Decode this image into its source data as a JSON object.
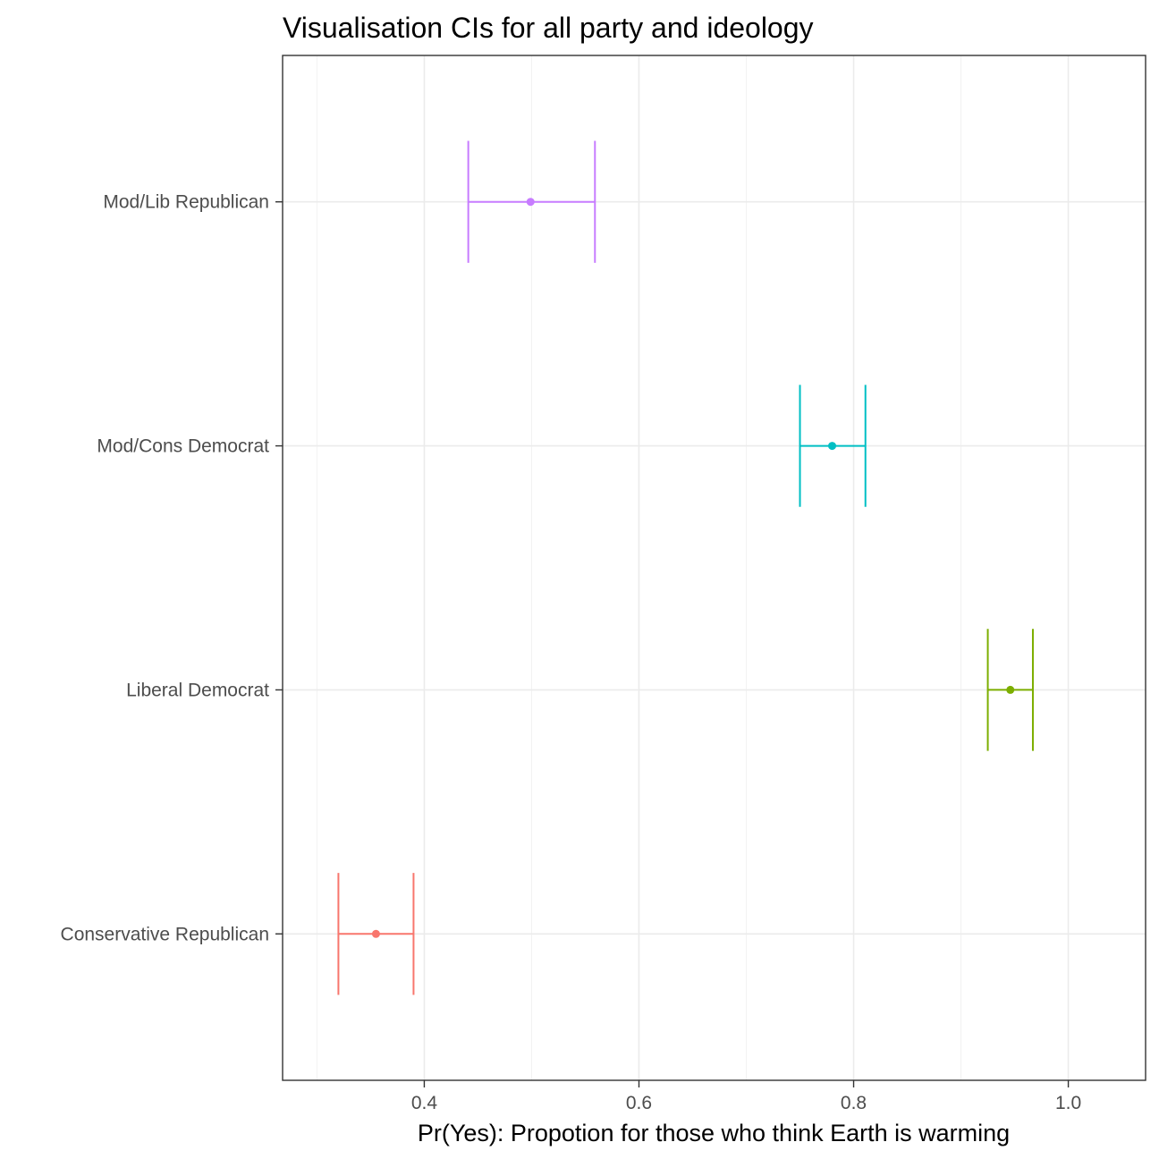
{
  "chart_data": {
    "type": "errorbar",
    "title": "Visualisation CIs for all party and ideology",
    "xlabel": "Pr(Yes): Propotion for those who think Earth is warming",
    "ylabel": "",
    "xlim": [
      0.268,
      1.072
    ],
    "x_ticks": [
      0.4,
      0.6,
      0.8,
      1.0
    ],
    "x_tick_labels": [
      "0.4",
      "0.6",
      "0.8",
      "1.0"
    ],
    "x_minor_ticks": [
      0.3,
      0.5,
      0.7,
      0.9
    ],
    "categories": [
      "Conservative Republican",
      "Liberal Democrat",
      "Mod/Cons Democrat",
      "Mod/Lib Republican"
    ],
    "series": [
      {
        "category": "Conservative Republican",
        "estimate": 0.355,
        "lower": 0.32,
        "upper": 0.39,
        "color": "#F8766D"
      },
      {
        "category": "Liberal Democrat",
        "estimate": 0.946,
        "lower": 0.925,
        "upper": 0.967,
        "color": "#7CAE00"
      },
      {
        "category": "Mod/Cons Democrat",
        "estimate": 0.78,
        "lower": 0.75,
        "upper": 0.811,
        "color": "#00BFC4"
      },
      {
        "category": "Mod/Lib Republican",
        "estimate": 0.499,
        "lower": 0.441,
        "upper": 0.559,
        "color": "#C77CFF"
      }
    ],
    "grid": true,
    "legend": "none"
  }
}
